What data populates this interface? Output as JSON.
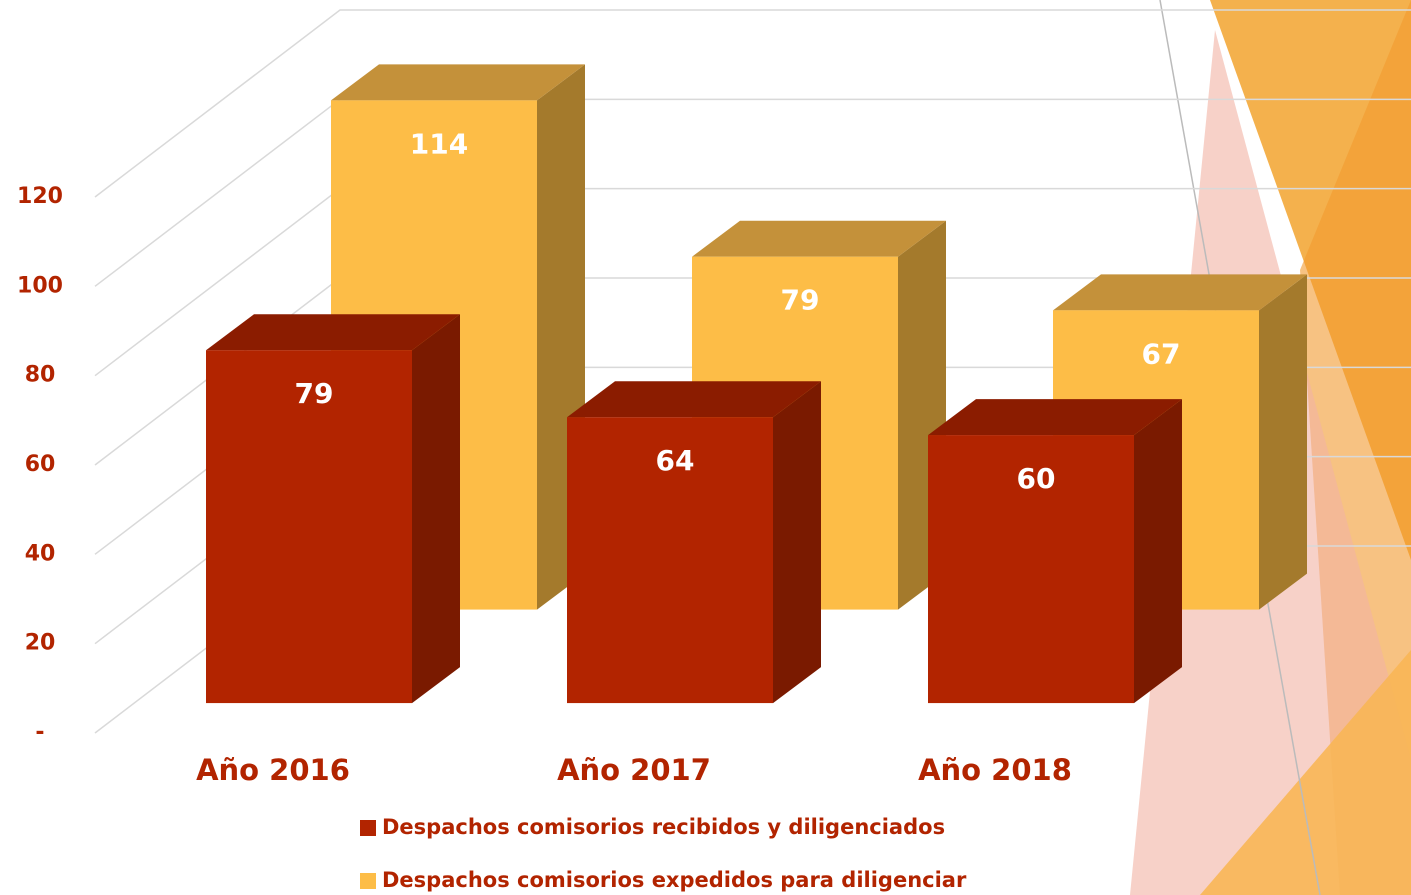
{
  "chart_data": {
    "type": "bar3d",
    "categories": [
      "Año 2016",
      "Año 2017",
      "Año 2018"
    ],
    "series": [
      {
        "name": "Despachos comisorios recibidos y diligenciados",
        "color": "#b22400",
        "values": [
          79,
          64,
          60
        ]
      },
      {
        "name": "Despachos comisorios expedidos para diligenciar",
        "color": "#fdbd47",
        "values": [
          114,
          79,
          67
        ]
      }
    ],
    "ylim": [
      0,
      120
    ],
    "yticks": [
      {
        "value": 0,
        "label": "-"
      },
      20,
      40,
      60,
      80,
      100,
      120
    ],
    "grid": true
  }
}
